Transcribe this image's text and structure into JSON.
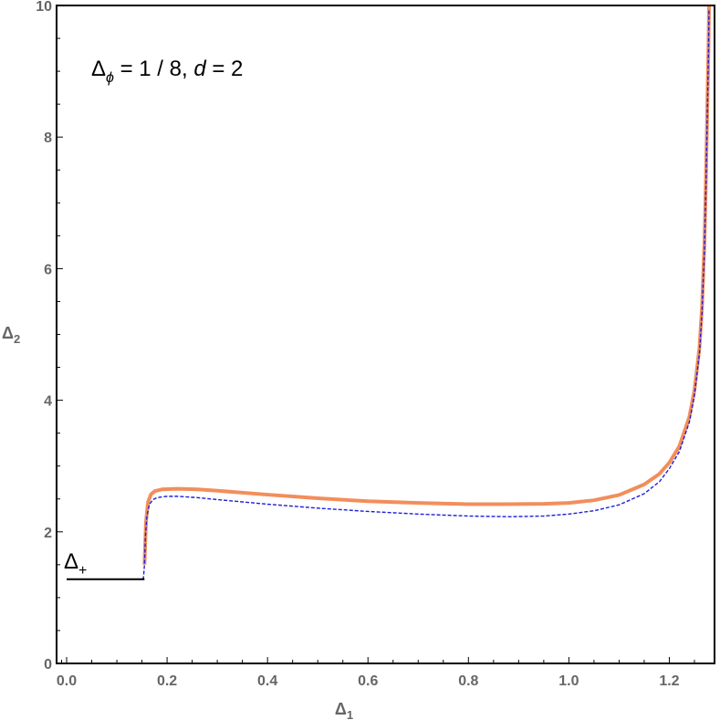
{
  "chart_data": {
    "type": "line",
    "xlabel": "Δ",
    "xlabel_sub": "1",
    "ylabel": "Δ",
    "ylabel_sub": "2",
    "xlim": [
      -0.02,
      1.29
    ],
    "ylim": [
      0,
      10
    ],
    "xticks": [
      0.0,
      0.2,
      0.4,
      0.6,
      0.8,
      1.0,
      1.2
    ],
    "xtick_labels": [
      "0.0",
      "0.2",
      "0.4",
      "0.6",
      "0.8",
      "1.0",
      "1.2"
    ],
    "yticks": [
      0,
      2,
      4,
      6,
      8,
      10
    ],
    "ytick_labels": [
      "0",
      "2",
      "4",
      "6",
      "8",
      "10"
    ],
    "grid": false,
    "annotations": {
      "params": {
        "delta": "Δ",
        "phi": "ϕ",
        "rest": " = 1 / 8,  ",
        "d": "d",
        "d_rest": " = 2"
      },
      "delta_plus": {
        "delta": "Δ",
        "sub": "+"
      }
    },
    "series": [
      {
        "style": "solid-thick",
        "color": "#f28e5c",
        "x": [
          0.155,
          0.158,
          0.162,
          0.168,
          0.176,
          0.19,
          0.22,
          0.26,
          0.3,
          0.4,
          0.5,
          0.6,
          0.7,
          0.8,
          0.87,
          0.95,
          1.0,
          1.05,
          1.1,
          1.15,
          1.18,
          1.2,
          1.22,
          1.24,
          1.25,
          1.26,
          1.265,
          1.27,
          1.273,
          1.276,
          1.278,
          1.279
        ],
        "y": [
          1.5,
          2.15,
          2.45,
          2.57,
          2.62,
          2.645,
          2.655,
          2.645,
          2.625,
          2.565,
          2.51,
          2.465,
          2.44,
          2.42,
          2.42,
          2.425,
          2.44,
          2.48,
          2.56,
          2.72,
          2.88,
          3.05,
          3.3,
          3.75,
          4.15,
          4.8,
          5.4,
          6.4,
          7.4,
          8.6,
          9.4,
          10.0
        ]
      },
      {
        "style": "dashed",
        "color": "#1f1fd6",
        "x": [
          0.15,
          0.153,
          0.155,
          0.157,
          0.16,
          0.165,
          0.172,
          0.18,
          0.2,
          0.22,
          0.26,
          0.3,
          0.4,
          0.5,
          0.6,
          0.7,
          0.8,
          0.88,
          0.95,
          1.0,
          1.05,
          1.1,
          1.15,
          1.18,
          1.2,
          1.22,
          1.24,
          1.25,
          1.26,
          1.265,
          1.27,
          1.273,
          1.276,
          1.278,
          1.279
        ],
        "y": [
          1.28,
          1.3,
          1.5,
          1.95,
          2.25,
          2.42,
          2.49,
          2.52,
          2.54,
          2.54,
          2.52,
          2.49,
          2.42,
          2.36,
          2.31,
          2.27,
          2.24,
          2.23,
          2.24,
          2.27,
          2.32,
          2.41,
          2.58,
          2.76,
          2.96,
          3.22,
          3.67,
          4.08,
          4.72,
          5.32,
          6.3,
          7.3,
          8.5,
          9.3,
          9.95
        ]
      },
      {
        "style": "solid-thin",
        "color": "#000000",
        "x": [
          0.0,
          0.155
        ],
        "y": [
          1.28,
          1.28
        ]
      }
    ]
  }
}
